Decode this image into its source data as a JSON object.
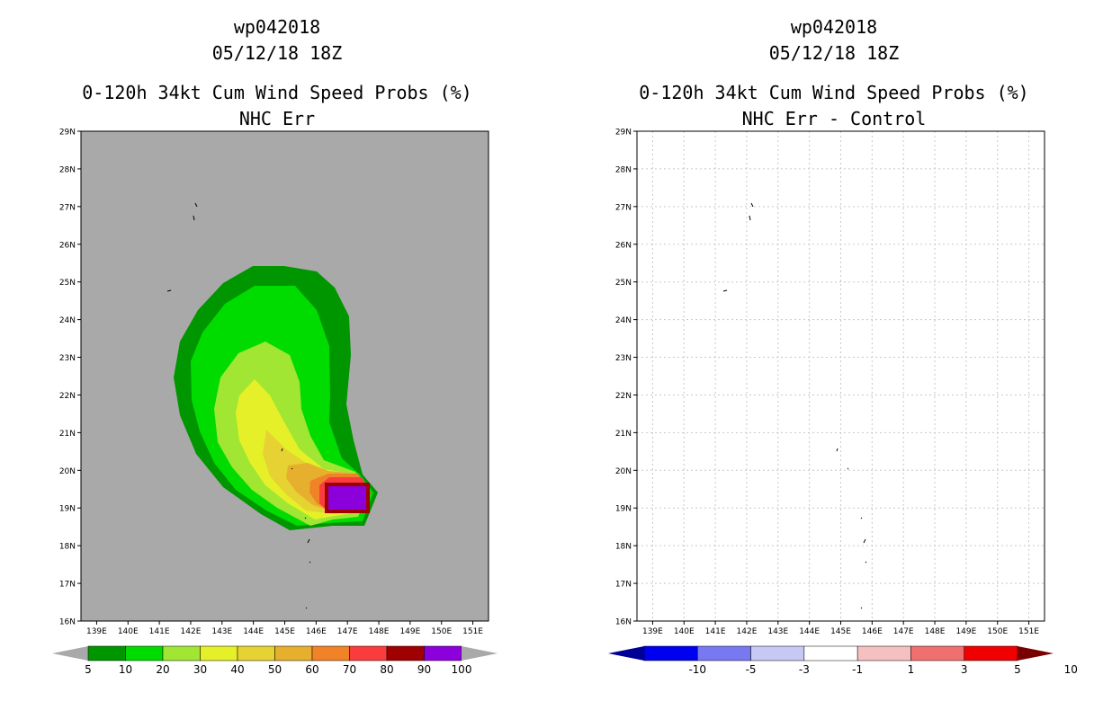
{
  "left": {
    "title_line1": "wp042018",
    "title_line2": "05/12/18 18Z",
    "title_line3": "0-120h 34kt Cum Wind Speed Probs (%)",
    "title_line4": "NHC Err"
  },
  "right": {
    "title_line1": "wp042018",
    "title_line2": "05/12/18 18Z",
    "title_line3": "0-120h 34kt Cum Wind Speed Probs (%)",
    "title_line4": "NHC Err - Control"
  },
  "colors": {
    "background_land": "#a9a9a9",
    "grid": "#c8c8c8"
  },
  "chart_data": [
    {
      "type": "heatmap",
      "title": "0-120h 34kt Cum Wind Speed Probs (%) NHC Err",
      "x_tick_labels": [
        "139E",
        "140E",
        "141E",
        "142E",
        "143E",
        "144E",
        "145E",
        "146E",
        "147E",
        "148E",
        "149E",
        "150E",
        "151E"
      ],
      "y_tick_labels": [
        "16N",
        "17N",
        "18N",
        "19N",
        "20N",
        "21N",
        "22N",
        "23N",
        "24N",
        "25N",
        "26N",
        "27N",
        "28N",
        "29N"
      ],
      "xlim": [
        138.5,
        151.5
      ],
      "ylim": [
        16,
        29
      ],
      "colorbar": {
        "labels": [
          "5",
          "10",
          "20",
          "30",
          "40",
          "50",
          "60",
          "70",
          "80",
          "90",
          "100"
        ],
        "colors": [
          "#a9a9a9",
          "#009600",
          "#00dc00",
          "#a0e632",
          "#e6f028",
          "#e6d232",
          "#e6af2d",
          "#f08228",
          "#fa3c3c",
          "#a00000",
          "#8c00dc",
          "#a9a9a9"
        ]
      },
      "contour_levels": [
        5,
        10,
        20,
        30,
        40,
        50,
        60,
        70,
        80,
        90,
        100
      ],
      "max_region_center": {
        "lon": 147.0,
        "lat": 19.3
      }
    },
    {
      "type": "heatmap",
      "title": "0-120h 34kt Cum Wind Speed Probs (%) NHC Err - Control",
      "x_tick_labels": [
        "139E",
        "140E",
        "141E",
        "142E",
        "143E",
        "144E",
        "145E",
        "146E",
        "147E",
        "148E",
        "149E",
        "150E",
        "151E"
      ],
      "y_tick_labels": [
        "16N",
        "17N",
        "18N",
        "19N",
        "20N",
        "21N",
        "22N",
        "23N",
        "24N",
        "25N",
        "26N",
        "27N",
        "28N",
        "29N"
      ],
      "xlim": [
        138.5,
        151.5
      ],
      "ylim": [
        16,
        29
      ],
      "grid": true,
      "colorbar": {
        "labels": [
          "-10",
          "-5",
          "-3",
          "-1",
          "1",
          "3",
          "5",
          "10"
        ],
        "colors": [
          "#000096",
          "#0000f0",
          "#7878f0",
          "#c8c8f5",
          "#ffffff",
          "#f5c0c0",
          "#f07070",
          "#f00000",
          "#780000"
        ]
      }
    }
  ]
}
